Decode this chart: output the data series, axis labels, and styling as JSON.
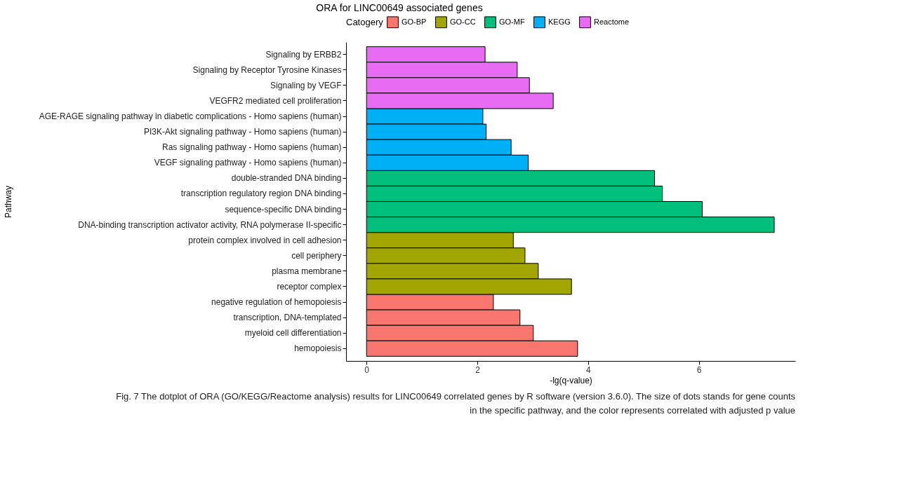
{
  "chart_data": {
    "type": "bar",
    "orientation": "horizontal",
    "title": "ORA for LINC00649 associated genes",
    "xlabel": "-lg(q-value)",
    "ylabel": "Pathway",
    "legend_title": "Catogery",
    "legend": "top",
    "categories": [
      "Signaling by ERBB2",
      "Signaling by Receptor Tyrosine Kinases",
      "Signaling by VEGF",
      "VEGFR2 mediated cell proliferation",
      "AGE-RAGE signaling pathway in diabetic complications - Homo sapiens (human)",
      "PI3K-Akt signaling pathway - Homo sapiens (human)",
      "Ras signaling pathway - Homo sapiens (human)",
      "VEGF signaling pathway - Homo sapiens (human)",
      "double-stranded DNA binding",
      "transcription regulatory region DNA binding",
      "sequence-specific DNA binding",
      "DNA-binding transcription activator activity, RNA polymerase II-specific",
      "protein complex involved in cell adhesion",
      "cell periphery",
      "plasma membrane",
      "receptor complex",
      "negative regulation of hemopoiesis",
      "transcription, DNA-templated",
      "myeloid cell differentiation",
      "hemopoiesis"
    ],
    "series": [
      {
        "name": "GO-BP",
        "color": "#f8766d",
        "values": [
          null,
          null,
          null,
          null,
          null,
          null,
          null,
          null,
          null,
          null,
          null,
          null,
          null,
          null,
          null,
          null,
          2.29,
          2.77,
          3.01,
          3.81
        ]
      },
      {
        "name": "GO-CC",
        "color": "#a3a500",
        "values": [
          null,
          null,
          null,
          null,
          null,
          null,
          null,
          null,
          null,
          null,
          null,
          null,
          2.65,
          2.86,
          3.1,
          3.7,
          null,
          null,
          null,
          null
        ]
      },
      {
        "name": "GO-MF",
        "color": "#00bf7d",
        "values": [
          null,
          null,
          null,
          null,
          null,
          null,
          null,
          null,
          5.2,
          5.34,
          6.06,
          7.36,
          null,
          null,
          null,
          null,
          null,
          null,
          null,
          null
        ]
      },
      {
        "name": "KEGG",
        "color": "#00b0f6",
        "values": [
          null,
          null,
          null,
          null,
          2.1,
          2.16,
          2.61,
          2.92,
          null,
          null,
          null,
          null,
          null,
          null,
          null,
          null,
          null,
          null,
          null,
          null
        ]
      },
      {
        "name": "Reactome",
        "color": "#e76bf3",
        "values": [
          2.14,
          2.72,
          2.94,
          3.37,
          null,
          null,
          null,
          null,
          null,
          null,
          null,
          null,
          null,
          null,
          null,
          null,
          null,
          null,
          null,
          null
        ]
      }
    ],
    "xlim": [
      -0.37,
      7.74
    ],
    "xticks": [
      0,
      2,
      4,
      6
    ],
    "grid": false,
    "annotations": [
      "Fig. 7 The dotplot of ORA (GO/KEGG/Reactome analysis) results for LINC00649 correlated genes by R software (version 3.6.0). The size of dots stands for gene counts in the specific pathway, and the color represents correlated with adjusted p value"
    ]
  }
}
